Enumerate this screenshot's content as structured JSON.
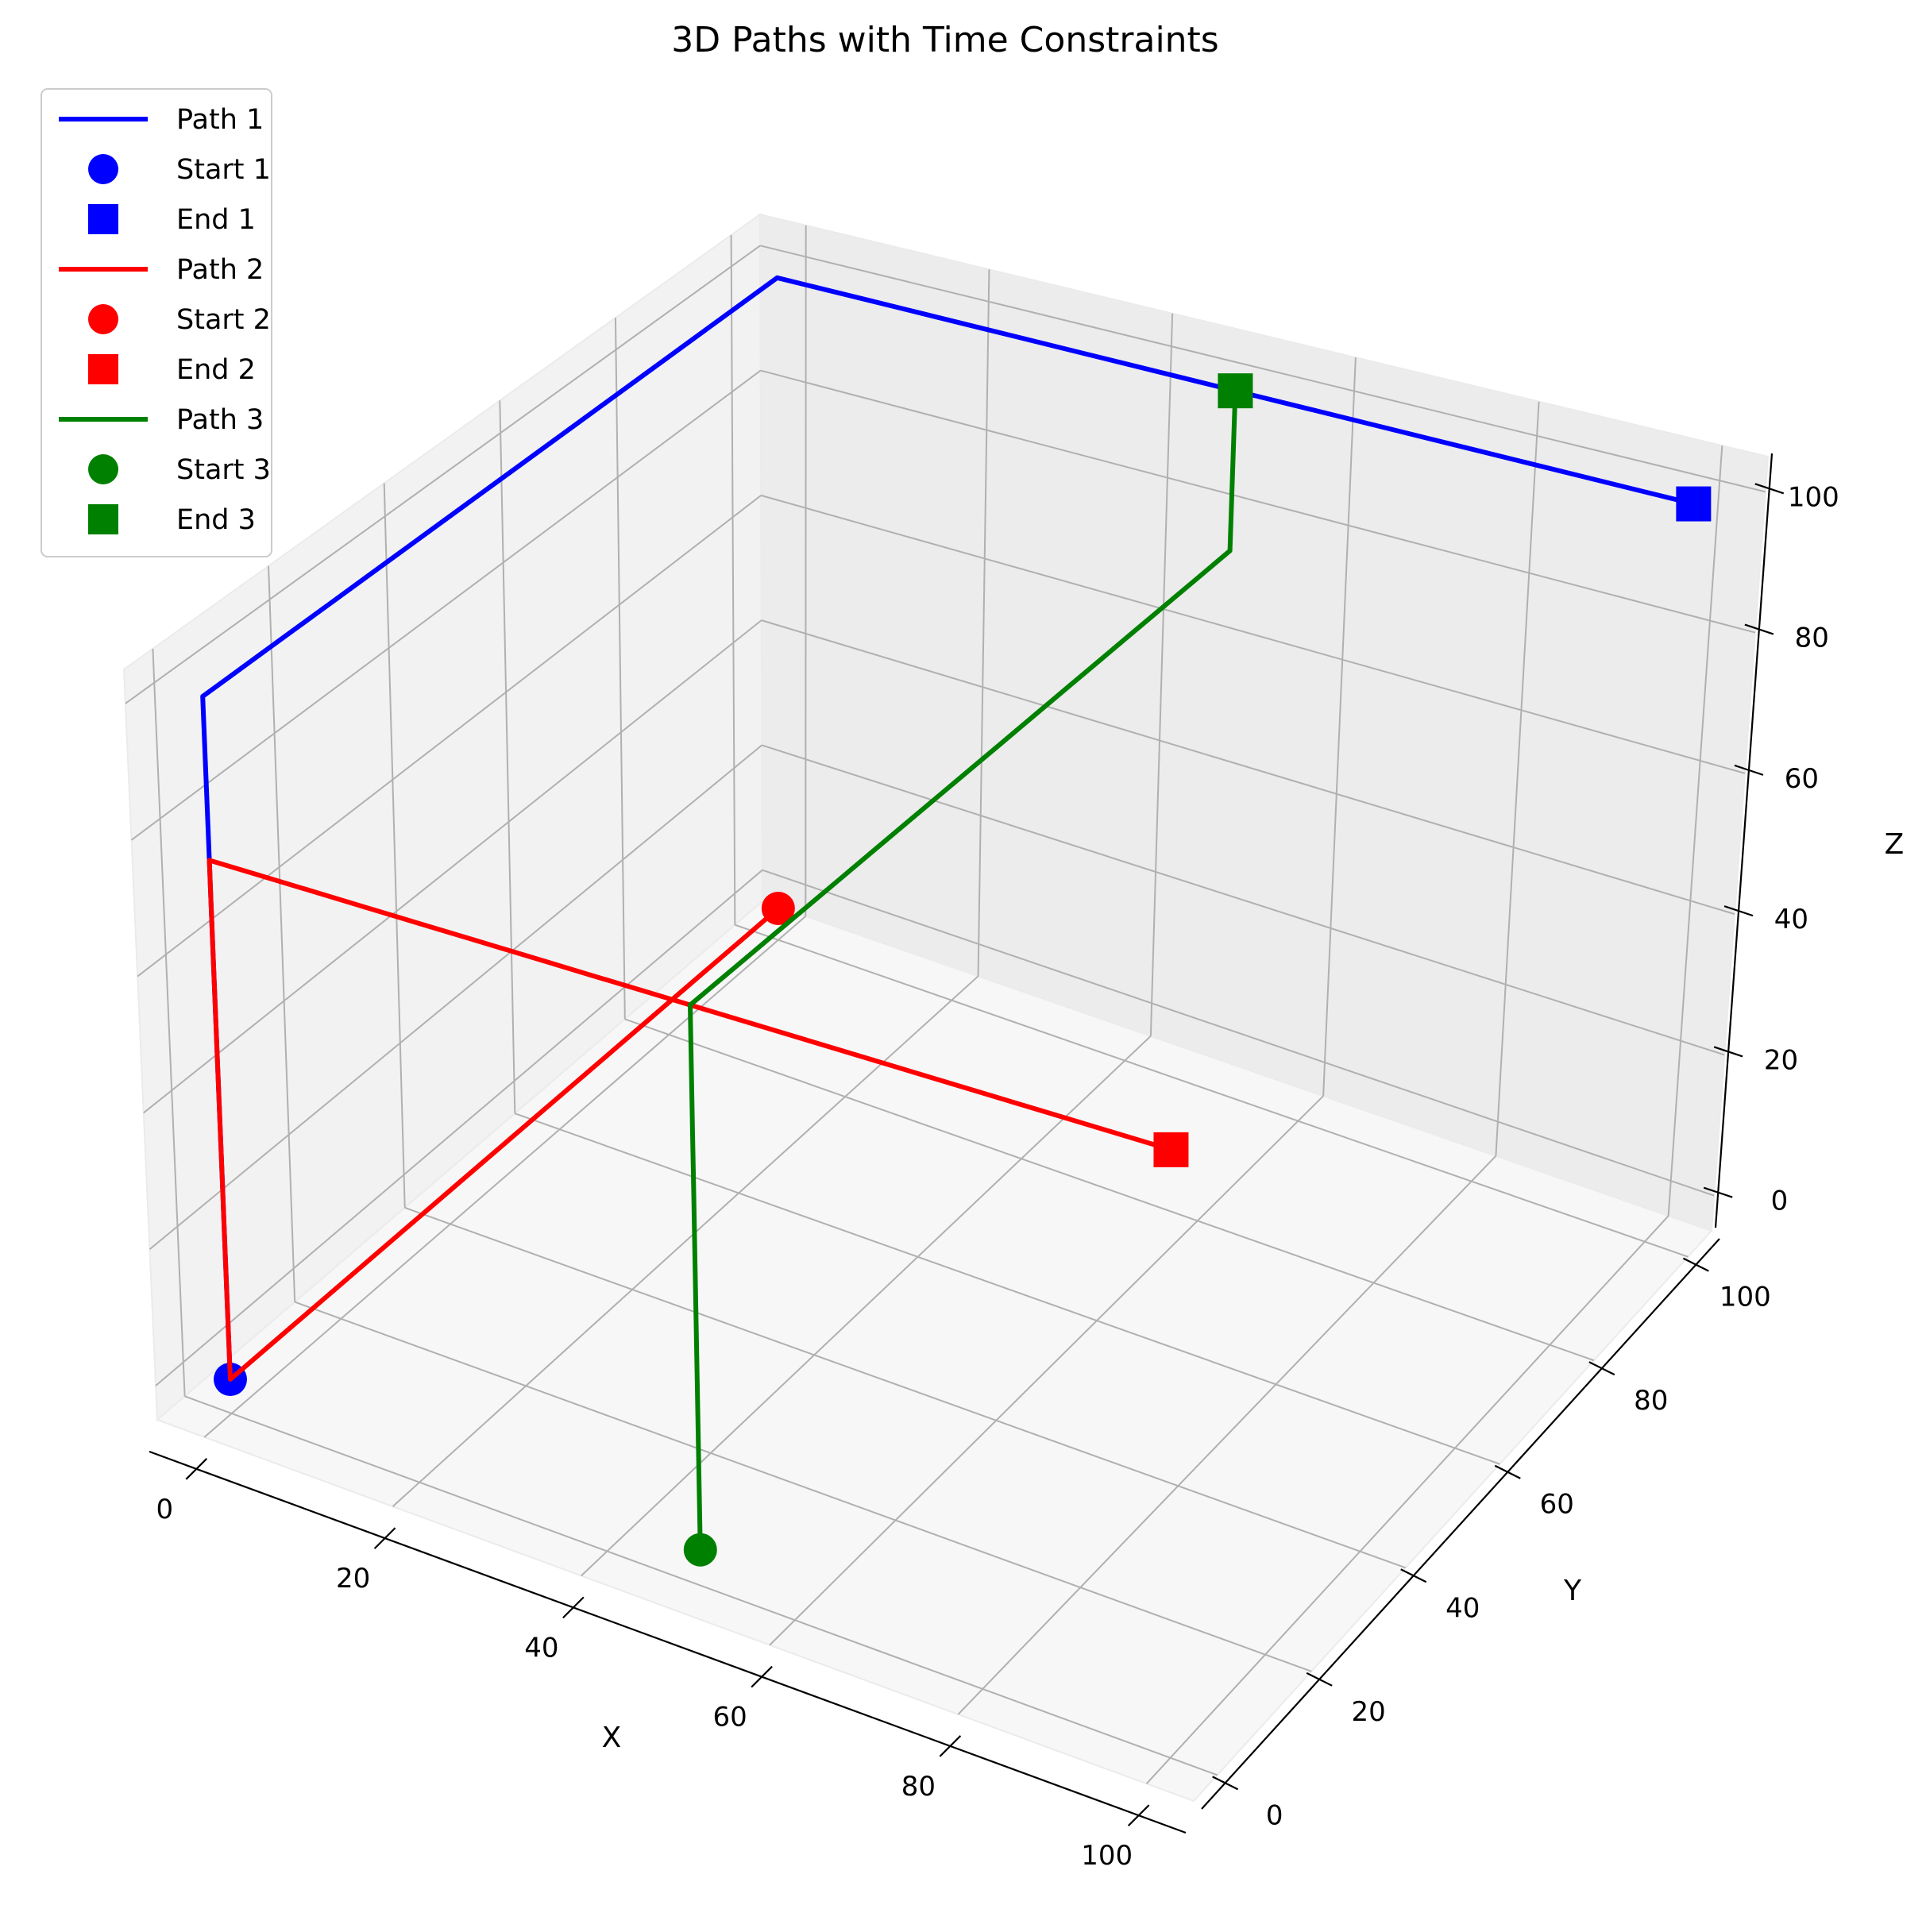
{
  "chart_data": {
    "type": "line",
    "projection": "3d",
    "title": "3D Paths with Time Constraints",
    "xlabel": "X",
    "ylabel": "Y",
    "zlabel": "Z",
    "xlim": [
      -5,
      105
    ],
    "ylim": [
      -5,
      105
    ],
    "zlim": [
      -5,
      105
    ],
    "xticks": [
      0,
      20,
      40,
      60,
      80,
      100
    ],
    "yticks": [
      0,
      20,
      40,
      60,
      80,
      100
    ],
    "zticks": [
      0,
      20,
      40,
      60,
      80,
      100
    ],
    "grid": true,
    "legend_position": "top-left",
    "series": [
      {
        "name": "Path 1",
        "start_label": "Start 1",
        "end_label": "End 1",
        "color": "#0000ff",
        "points": [
          [
            0,
            0,
            0
          ],
          [
            0,
            0,
            4
          ],
          [
            0,
            0,
            10
          ],
          [
            0,
            0,
            16
          ],
          [
            0,
            0,
            22
          ],
          [
            0,
            0,
            28
          ],
          [
            0,
            0,
            34
          ],
          [
            0,
            0,
            40
          ],
          [
            0,
            0,
            46
          ],
          [
            0,
            0,
            52
          ],
          [
            0,
            0,
            58
          ],
          [
            0,
            0,
            64
          ],
          [
            0,
            0,
            70
          ],
          [
            0,
            0,
            76
          ],
          [
            0,
            0,
            82
          ],
          [
            0,
            0,
            88
          ],
          [
            0,
            0,
            94
          ],
          [
            0,
            0,
            100
          ],
          [
            0,
            4,
            100
          ],
          [
            0,
            10,
            100
          ],
          [
            0,
            16,
            100
          ],
          [
            0,
            22,
            100
          ],
          [
            0,
            28,
            100
          ],
          [
            0,
            34,
            100
          ],
          [
            0,
            40,
            100
          ],
          [
            0,
            46,
            100
          ],
          [
            0,
            52,
            100
          ],
          [
            0,
            58,
            100
          ],
          [
            0,
            64,
            100
          ],
          [
            0,
            70,
            100
          ],
          [
            0,
            76,
            100
          ],
          [
            0,
            82,
            100
          ],
          [
            0,
            88,
            100
          ],
          [
            0,
            94,
            100
          ],
          [
            0,
            100,
            100
          ],
          [
            4,
            100,
            100
          ],
          [
            10,
            100,
            100
          ],
          [
            16,
            100,
            100
          ],
          [
            22,
            100,
            100
          ],
          [
            28,
            100,
            100
          ],
          [
            34,
            100,
            100
          ],
          [
            40,
            100,
            100
          ],
          [
            46,
            100,
            100
          ],
          [
            52,
            100,
            100
          ],
          [
            58,
            100,
            100
          ],
          [
            64,
            100,
            100
          ],
          [
            70,
            100,
            100
          ],
          [
            76,
            100,
            100
          ],
          [
            82,
            100,
            100
          ],
          [
            88,
            100,
            100
          ],
          [
            94,
            100,
            100
          ],
          [
            100,
            100,
            100
          ]
        ]
      },
      {
        "name": "Path 2",
        "start_label": "Start 2",
        "end_label": "End 2",
        "color": "#ff0000",
        "points": [
          [
            0,
            100,
            0
          ],
          [
            0,
            94,
            0
          ],
          [
            0,
            88,
            0
          ],
          [
            0,
            82,
            0
          ],
          [
            0,
            76,
            0
          ],
          [
            0,
            70,
            0
          ],
          [
            0,
            64,
            0
          ],
          [
            0,
            58,
            0
          ],
          [
            0,
            52,
            0
          ],
          [
            0,
            46,
            0
          ],
          [
            0,
            40,
            0
          ],
          [
            0,
            34,
            0
          ],
          [
            0,
            28,
            0
          ],
          [
            0,
            22,
            0
          ],
          [
            0,
            16,
            0
          ],
          [
            0,
            10,
            0
          ],
          [
            0,
            4,
            0
          ],
          [
            0,
            0,
            0
          ],
          [
            0,
            0,
            4
          ],
          [
            0,
            0,
            10
          ],
          [
            0,
            0,
            16
          ],
          [
            0,
            0,
            22
          ],
          [
            0,
            0,
            28
          ],
          [
            0,
            0,
            34
          ],
          [
            0,
            0,
            40
          ],
          [
            0,
            0,
            46
          ],
          [
            0,
            0,
            52
          ],
          [
            0,
            0,
            58
          ],
          [
            0,
            0,
            64
          ],
          [
            0,
            0,
            70
          ],
          [
            0,
            0,
            76
          ],
          [
            4,
            0,
            76
          ],
          [
            10,
            0,
            76
          ],
          [
            16,
            0,
            76
          ],
          [
            22,
            0,
            76
          ],
          [
            28,
            0,
            76
          ],
          [
            34,
            0,
            76
          ],
          [
            40,
            0,
            76
          ],
          [
            46,
            0,
            76
          ],
          [
            52,
            0,
            76
          ],
          [
            58,
            0,
            76
          ],
          [
            64,
            0,
            76
          ],
          [
            70,
            0,
            76
          ],
          [
            76,
            0,
            76
          ],
          [
            82,
            0,
            76
          ],
          [
            88,
            0,
            76
          ],
          [
            94,
            0,
            76
          ],
          [
            100,
            0,
            76
          ]
        ]
      },
      {
        "name": "Path 3",
        "start_label": "Start 3",
        "end_label": "End 3",
        "color": "#008000",
        "points": [
          [
            50,
            0,
            0
          ],
          [
            50,
            0,
            4
          ],
          [
            50,
            0,
            10
          ],
          [
            50,
            0,
            16
          ],
          [
            50,
            0,
            22
          ],
          [
            50,
            0,
            28
          ],
          [
            50,
            0,
            34
          ],
          [
            50,
            0,
            40
          ],
          [
            50,
            0,
            46
          ],
          [
            50,
            0,
            52
          ],
          [
            50,
            0,
            58
          ],
          [
            50,
            0,
            64
          ],
          [
            50,
            0,
            70
          ],
          [
            50,
            0,
            76
          ],
          [
            50,
            4,
            76
          ],
          [
            50,
            10,
            76
          ],
          [
            50,
            16,
            76
          ],
          [
            50,
            22,
            76
          ],
          [
            50,
            28,
            76
          ],
          [
            50,
            34,
            76
          ],
          [
            50,
            40,
            76
          ],
          [
            50,
            46,
            76
          ],
          [
            50,
            52,
            76
          ],
          [
            50,
            58,
            76
          ],
          [
            50,
            64,
            76
          ],
          [
            50,
            70,
            76
          ],
          [
            50,
            76,
            76
          ],
          [
            50,
            82,
            76
          ],
          [
            50,
            88,
            76
          ],
          [
            50,
            94,
            76
          ],
          [
            50,
            100,
            76
          ],
          [
            50,
            100,
            82
          ],
          [
            50,
            100,
            88
          ],
          [
            50,
            100,
            94
          ],
          [
            50,
            100,
            100
          ]
        ]
      }
    ]
  }
}
